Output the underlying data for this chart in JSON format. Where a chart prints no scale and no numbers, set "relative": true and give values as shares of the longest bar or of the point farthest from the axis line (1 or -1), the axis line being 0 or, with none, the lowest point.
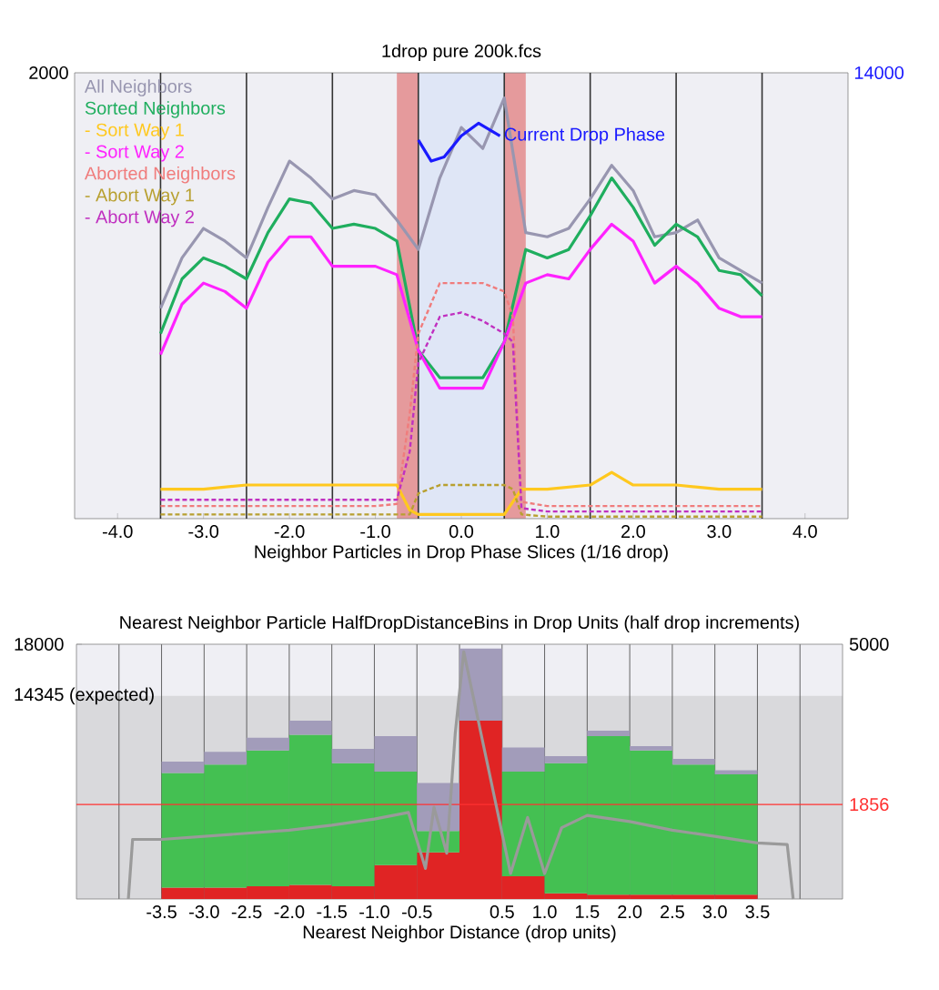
{
  "chart_data": [
    {
      "type": "line",
      "title": "1drop pure 200k.fcs",
      "xlabel": "Neighbor Particles in Drop Phase Slices (1/16 drop)",
      "relative": true,
      "annotations": [
        "2000",
        "14000"
      ],
      "xlim": [
        -4.5,
        4.5
      ],
      "xticks": [
        {
          "value": -4,
          "label": "-4.0"
        },
        {
          "value": -3,
          "label": "-3.0"
        },
        {
          "value": -2,
          "label": "-2.0"
        },
        {
          "value": -1,
          "label": "-1.0"
        },
        {
          "value": 0,
          "label": "0.0"
        },
        {
          "value": 1,
          "label": "1.0"
        },
        {
          "value": 2,
          "label": "2.0"
        },
        {
          "value": 3,
          "label": "3.0"
        },
        {
          "value": 4,
          "label": "4.0"
        }
      ],
      "legend": "top left",
      "marker": "none",
      "x": [
        -3.5,
        -3.25,
        -3,
        -2.75,
        -2.5,
        -2.25,
        -2,
        -1.75,
        -1.5,
        -1.25,
        -1,
        -0.75,
        -0.5,
        -0.25,
        0,
        0.25,
        0.5,
        0.75,
        1,
        1.25,
        1.5,
        1.75,
        2,
        2.25,
        2.5,
        2.75,
        3,
        3.25,
        3.5
      ],
      "bands": [
        {
          "axis": "x",
          "from": -0.75,
          "to": -0.5,
          "color": "#e59a9c"
        },
        {
          "axis": "x",
          "from": -0.5,
          "to": 0.5,
          "color": "#dfe6f6"
        },
        {
          "axis": "x",
          "from": 0.5,
          "to": 0.75,
          "color": "#e59a9c"
        }
      ],
      "ref_lines": [
        {
          "axis": "x",
          "value": -3.5,
          "color": "#333333"
        },
        {
          "axis": "x",
          "value": -2.5,
          "color": "#333333"
        },
        {
          "axis": "x",
          "value": -1.5,
          "color": "#333333"
        },
        {
          "axis": "x",
          "value": -0.5,
          "color": "#333333"
        },
        {
          "axis": "x",
          "value": 0.5,
          "color": "#333333"
        },
        {
          "axis": "x",
          "value": 1.5,
          "color": "#333333"
        },
        {
          "axis": "x",
          "value": 2.5,
          "color": "#333333"
        },
        {
          "axis": "x",
          "value": 3.5,
          "color": "#333333"
        }
      ],
      "series": [
        {
          "name": "All Neighbors",
          "color": "#9896b0",
          "values": [
            0.5,
            0.62,
            0.69,
            0.66,
            0.62,
            0.74,
            0.85,
            0.81,
            0.76,
            0.78,
            0.77,
            0.71,
            0.64,
            0.81,
            0.93,
            0.88,
            1,
            0.68,
            0.67,
            0.69,
            0.76,
            0.84,
            0.78,
            0.67,
            0.68,
            0.71,
            0.62,
            0.59,
            0.56
          ]
        },
        {
          "name": "Sorted Neighbors",
          "color": "#1fae5e",
          "values": [
            0.44,
            0.57,
            0.62,
            0.6,
            0.57,
            0.68,
            0.76,
            0.75,
            0.69,
            0.7,
            0.69,
            0.66,
            0.4,
            0.335,
            0.335,
            0.335,
            0.42,
            0.64,
            0.62,
            0.64,
            0.72,
            0.81,
            0.74,
            0.65,
            0.7,
            0.67,
            0.59,
            0.58,
            0.53
          ]
        },
        {
          "name": "- Sort Way 1",
          "color": "#ffc81e",
          "x": [
            -3.5,
            -3,
            -2.5,
            -2,
            -1.5,
            -1,
            -0.75,
            -0.6,
            -0.5,
            0,
            0.5,
            0.7,
            1,
            1.5,
            1.75,
            2,
            2.5,
            3,
            3.5
          ],
          "values": [
            0.07,
            0.07,
            0.08,
            0.08,
            0.08,
            0.08,
            0.08,
            0.02,
            0.01,
            0.01,
            0.01,
            0.07,
            0.07,
            0.08,
            0.11,
            0.08,
            0.08,
            0.07,
            0.07
          ]
        },
        {
          "name": "- Sort Way 2",
          "color": "#ff22ff",
          "values": [
            0.39,
            0.51,
            0.56,
            0.54,
            0.5,
            0.61,
            0.67,
            0.67,
            0.6,
            0.6,
            0.6,
            0.58,
            0.4,
            0.31,
            0.31,
            0.31,
            0.42,
            0.56,
            0.58,
            0.57,
            0.64,
            0.7,
            0.66,
            0.56,
            0.6,
            0.56,
            0.5,
            0.48,
            0.48
          ]
        },
        {
          "name": "Aborted Neighbors",
          "color": "#f07c7c",
          "line_style": "dotted",
          "x": [
            -3.5,
            -1,
            -0.75,
            -0.6,
            -0.5,
            -0.25,
            0,
            0.25,
            0.5,
            0.6,
            0.7,
            1,
            2,
            3,
            3.5
          ],
          "values": [
            0.03,
            0.03,
            0.035,
            0.25,
            0.44,
            0.56,
            0.56,
            0.56,
            0.54,
            0.48,
            0.04,
            0.03,
            0.03,
            0.03,
            0.03
          ]
        },
        {
          "name": "- Abort Way 1",
          "color": "#b8a030",
          "line_style": "dotted",
          "x": [
            -3.5,
            -1,
            -0.6,
            -0.5,
            -0.25,
            0,
            0.5,
            0.6,
            0.7,
            1,
            2,
            3,
            3.5
          ],
          "values": [
            0.01,
            0.01,
            0.01,
            0.06,
            0.08,
            0.08,
            0.08,
            0.07,
            0.01,
            0.005,
            0.005,
            0.005,
            0.005
          ]
        },
        {
          "name": "- Abort Way 2",
          "color": "#c030c0",
          "line_style": "dotted",
          "x": [
            -3.5,
            -1,
            -0.75,
            -0.6,
            -0.5,
            -0.25,
            0,
            0.25,
            0.5,
            0.6,
            0.7,
            1,
            2,
            3,
            3.5
          ],
          "values": [
            0.045,
            0.045,
            0.045,
            0.16,
            0.37,
            0.48,
            0.49,
            0.47,
            0.44,
            0.42,
            0.025,
            0.017,
            0.017,
            0.017,
            0.017
          ]
        },
        {
          "name": "Current Drop Phase",
          "color": "#1a1aff",
          "x": [
            -0.5,
            -0.35,
            -0.2,
            0,
            0.2,
            0.45
          ],
          "values": [
            0.9,
            0.85,
            0.86,
            0.91,
            0.94,
            0.91
          ]
        }
      ]
    },
    {
      "type": "bar",
      "stacked": true,
      "title": "Nearest Neighbor Particle HalfDropDistanceBins in Drop Units (half drop increments)",
      "xlabel": "Nearest Neighbor Distance (drop units)",
      "xlim": [
        -4.5,
        4.5
      ],
      "xticks": [
        {
          "value": -4,
          "label": null
        },
        -3.5,
        {
          "value": -3,
          "label": "-3.0"
        },
        -2.5,
        {
          "value": -2,
          "label": "-2.0"
        },
        -1.5,
        {
          "value": -1,
          "label": "-1.0"
        },
        -0.5,
        {
          "value": 0,
          "label": null
        },
        0.5,
        {
          "value": 1,
          "label": "1.0"
        },
        1.5,
        {
          "value": 2,
          "label": "2.0"
        },
        2.5,
        {
          "value": 3,
          "label": "3.0"
        },
        3.5,
        {
          "value": 4,
          "label": null
        }
      ],
      "ylim": [
        0,
        18000
      ],
      "yticks": [
        {
          "value": 14345,
          "label": "14345 (expected)"
        },
        18000
      ],
      "y2lim": [
        0,
        5000
      ],
      "y2ticks": [
        5000
      ],
      "grid": "x",
      "x": [
        -3.25,
        -2.75,
        -2.25,
        -1.75,
        -1.25,
        -0.75,
        -0.25,
        0.25,
        0.75,
        1.25,
        1.75,
        2.25,
        2.75,
        3.25
      ],
      "bands": [
        {
          "axis": "y",
          "from": 0,
          "to": 14345,
          "color": "#d9d9dc"
        }
      ],
      "ref_lines": [
        {
          "axis": "y2",
          "value": 1856,
          "label": "1856",
          "color": "#ff3030"
        }
      ],
      "series": [
        {
          "color": "#e02424",
          "values": [
            800,
            800,
            900,
            1000,
            900,
            2400,
            3300,
            12600,
            1600,
            400,
            300,
            300,
            300,
            300
          ]
        },
        {
          "color": "#44c052",
          "values": [
            8100,
            8700,
            9600,
            10600,
            8700,
            6600,
            1500,
            0,
            7400,
            9200,
            11200,
            10200,
            9200,
            8500
          ]
        },
        {
          "color": "#a29cba",
          "values": [
            800,
            900,
            900,
            1000,
            1000,
            2500,
            3400,
            5100,
            1700,
            500,
            400,
            300,
            400,
            300
          ]
        },
        {
          "type": "line",
          "axis": "y2",
          "color": "#9a9a9a",
          "x": [
            -3.89,
            -3.84,
            -3.5,
            -3.0,
            -2.5,
            -2.0,
            -1.5,
            -1.0,
            -0.6,
            -0.4,
            -0.3,
            -0.15,
            -0.05,
            0.05,
            0.6,
            0.8,
            1.0,
            1.2,
            1.5,
            2.0,
            2.5,
            3.0,
            3.5,
            3.85,
            3.92
          ],
          "values": [
            0,
            1170,
            1170,
            1230,
            1290,
            1350,
            1450,
            1570,
            1700,
            600,
            1800,
            900,
            3250,
            4850,
            500,
            1600,
            500,
            1400,
            1640,
            1520,
            1350,
            1230,
            1100,
            1070,
            0
          ]
        }
      ]
    }
  ]
}
